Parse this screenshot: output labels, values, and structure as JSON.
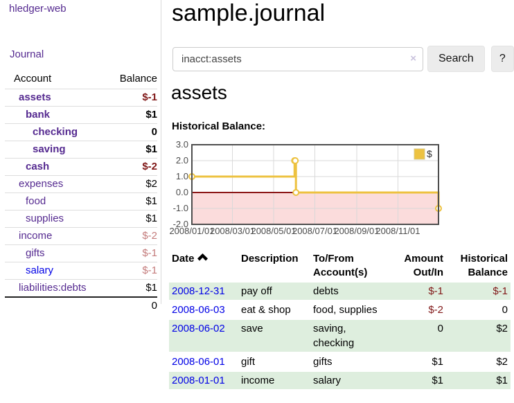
{
  "app": {
    "title": "hledger-web"
  },
  "sidebar": {
    "journal_link": "Journal",
    "accounts": {
      "header_account": "Account",
      "header_balance": "Balance",
      "rows": [
        {
          "name": "assets",
          "indent": 0,
          "bold": true,
          "link": "visited",
          "balance": "$-1",
          "neg": "dark"
        },
        {
          "name": "bank",
          "indent": 1,
          "bold": true,
          "link": "visited",
          "balance": "$1",
          "neg": ""
        },
        {
          "name": "checking",
          "indent": 2,
          "bold": true,
          "link": "visited",
          "balance": "0",
          "neg": ""
        },
        {
          "name": "saving",
          "indent": 2,
          "bold": true,
          "link": "visited",
          "balance": "$1",
          "neg": ""
        },
        {
          "name": "cash",
          "indent": 1,
          "bold": true,
          "link": "visited",
          "balance": "$-2",
          "neg": "dark"
        },
        {
          "name": "expenses",
          "indent": 0,
          "bold": false,
          "link": "visited",
          "balance": "$2",
          "neg": ""
        },
        {
          "name": "food",
          "indent": 1,
          "bold": false,
          "link": "visited",
          "balance": "$1",
          "neg": ""
        },
        {
          "name": "supplies",
          "indent": 1,
          "bold": false,
          "link": "visited",
          "balance": "$1",
          "neg": ""
        },
        {
          "name": "income",
          "indent": 0,
          "bold": false,
          "link": "visited",
          "balance": "$-2",
          "neg": "light"
        },
        {
          "name": "gifts",
          "indent": 1,
          "bold": false,
          "link": "visited",
          "balance": "$-1",
          "neg": "light"
        },
        {
          "name": "salary",
          "indent": 1,
          "bold": false,
          "link": "new",
          "balance": "$-1",
          "neg": "light"
        },
        {
          "name": "liabilities:debts",
          "indent": 0,
          "bold": false,
          "link": "visited",
          "balance": "$1",
          "neg": ""
        }
      ],
      "total": "0"
    }
  },
  "main": {
    "title": "sample.journal",
    "search": {
      "value": "inacct:assets",
      "clear": "×",
      "button_label": "Search",
      "help_label": "?"
    },
    "heading": "assets",
    "chart_title": "Historical Balance:"
  },
  "chart_data": {
    "type": "line",
    "step": true,
    "title": "Historical Balance:",
    "x_range": [
      "2008-01-01",
      "2008-12-31"
    ],
    "ylim": [
      -2,
      3
    ],
    "yticks": [
      3.0,
      2.0,
      1.0,
      0.0,
      -1.0,
      -2.0
    ],
    "xticks": [
      {
        "date": "2008-01-01",
        "label": "2008/01/01"
      },
      {
        "date": "2008-03-01",
        "label": "2008/03/01"
      },
      {
        "date": "2008-05-01",
        "label": "2008/05/01"
      },
      {
        "date": "2008-07-01",
        "label": "2008/07/01"
      },
      {
        "date": "2008-09-01",
        "label": "2008/09/01"
      },
      {
        "date": "2008-11-01",
        "label": "2008/11/01"
      }
    ],
    "series": [
      {
        "name": "$",
        "color": "#edc240",
        "points": [
          {
            "date": "2008-01-01",
            "value": 1
          },
          {
            "date": "2008-06-01",
            "value": 2
          },
          {
            "date": "2008-06-02",
            "value": 2
          },
          {
            "date": "2008-06-03",
            "value": 0
          },
          {
            "date": "2008-12-31",
            "value": -1
          }
        ]
      }
    ],
    "legend_position": "top-right",
    "grid": true,
    "colors": {
      "line": "#edc240",
      "negative_region": "#fbdcdc",
      "zero_line": "#8b1717",
      "grid_line": "#d9d9d9",
      "plot_border": "#4d4d4d",
      "tick_text": "#4a4a4a"
    }
  },
  "register": {
    "headers": {
      "date": "Date",
      "description": "Description",
      "accounts": "To/From Account(s)",
      "amount": "Amount Out/In",
      "balance": "Historical Balance"
    },
    "rows": [
      {
        "date": "2008-12-31",
        "description": "pay off",
        "accounts": "debts",
        "amount": "$-1",
        "amount_neg": true,
        "balance": "$-1",
        "balance_neg": true
      },
      {
        "date": "2008-06-03",
        "description": "eat & shop",
        "accounts": "food, supplies",
        "amount": "$-2",
        "amount_neg": true,
        "balance": "0",
        "balance_neg": false
      },
      {
        "date": "2008-06-02",
        "description": "save",
        "accounts": "saving, checking",
        "amount": "0",
        "amount_neg": false,
        "balance": "$2",
        "balance_neg": false
      },
      {
        "date": "2008-06-01",
        "description": "gift",
        "accounts": "gifts",
        "amount": "$1",
        "amount_neg": false,
        "balance": "$2",
        "balance_neg": false
      },
      {
        "date": "2008-01-01",
        "description": "income",
        "accounts": "salary",
        "amount": "$1",
        "amount_neg": false,
        "balance": "$1",
        "balance_neg": false
      }
    ]
  }
}
